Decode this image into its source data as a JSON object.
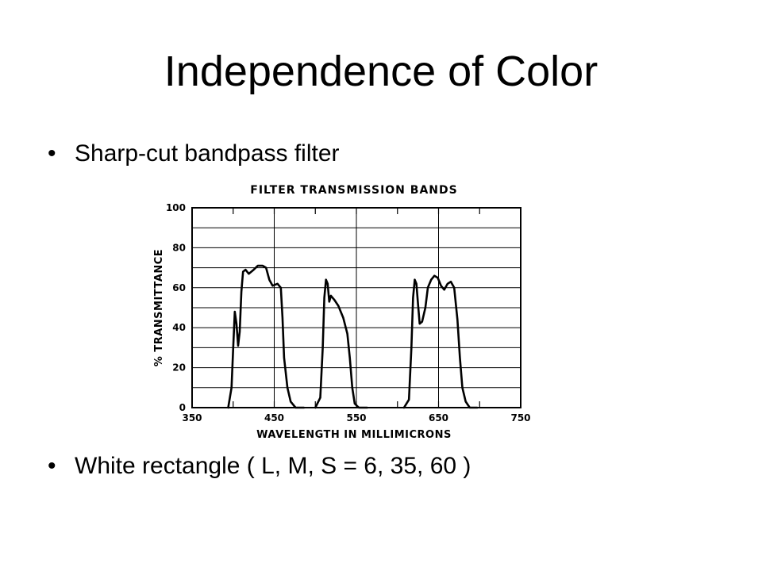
{
  "slide": {
    "title": "Independence of Color",
    "bullet_1": "Sharp-cut bandpass filter",
    "bullet_2": "White rectangle ( L,  M, S  =  6, 35, 60 )",
    "bullet_symbol": "•"
  },
  "chart_data": {
    "type": "line",
    "title": "FILTER TRANSMISSION BANDS",
    "xlabel": "WAVELENGTH IN MILLIMICRONS",
    "ylabel": "% TRANSMITTANCE",
    "xlim": [
      350,
      750
    ],
    "ylim": [
      0,
      100
    ],
    "x_ticks": [
      350,
      450,
      550,
      650,
      750
    ],
    "y_ticks": [
      0,
      20,
      40,
      60,
      80,
      100
    ],
    "grid": true,
    "line_color": "#000000",
    "series": [
      {
        "points": [
          [
            394,
            0
          ],
          [
            398,
            10
          ],
          [
            400,
            30
          ],
          [
            402,
            48
          ],
          [
            404,
            42
          ],
          [
            406,
            31
          ],
          [
            408,
            38
          ],
          [
            410,
            58
          ],
          [
            412,
            68
          ],
          [
            415,
            69
          ],
          [
            419,
            67
          ],
          [
            425,
            69
          ],
          [
            430,
            71
          ],
          [
            436,
            71
          ],
          [
            440,
            70
          ],
          [
            444,
            64
          ],
          [
            448,
            61
          ],
          [
            454,
            62
          ],
          [
            458,
            60
          ],
          [
            460,
            45
          ],
          [
            462,
            25
          ],
          [
            466,
            10
          ],
          [
            470,
            3
          ],
          [
            476,
            0
          ],
          [
            486,
            0
          ]
        ]
      },
      {
        "points": [
          [
            500,
            0
          ],
          [
            506,
            5
          ],
          [
            509,
            30
          ],
          [
            511,
            55
          ],
          [
            513,
            64
          ],
          [
            515,
            62
          ],
          [
            517,
            53
          ],
          [
            519,
            56
          ],
          [
            523,
            54
          ],
          [
            528,
            51
          ],
          [
            534,
            45
          ],
          [
            539,
            37
          ],
          [
            542,
            25
          ],
          [
            545,
            10
          ],
          [
            548,
            2
          ],
          [
            553,
            0
          ],
          [
            563,
            0
          ]
        ]
      },
      {
        "points": [
          [
            608,
            0
          ],
          [
            614,
            4
          ],
          [
            617,
            30
          ],
          [
            619,
            55
          ],
          [
            621,
            64
          ],
          [
            623,
            62
          ],
          [
            625,
            52
          ],
          [
            627,
            42
          ],
          [
            630,
            43
          ],
          [
            634,
            50
          ],
          [
            637,
            60
          ],
          [
            641,
            64
          ],
          [
            645,
            66
          ],
          [
            649,
            65
          ],
          [
            653,
            61
          ],
          [
            657,
            59
          ],
          [
            661,
            62
          ],
          [
            665,
            63
          ],
          [
            669,
            60
          ],
          [
            673,
            44
          ],
          [
            676,
            25
          ],
          [
            679,
            10
          ],
          [
            683,
            3
          ],
          [
            688,
            0
          ],
          [
            697,
            0
          ]
        ]
      }
    ]
  }
}
